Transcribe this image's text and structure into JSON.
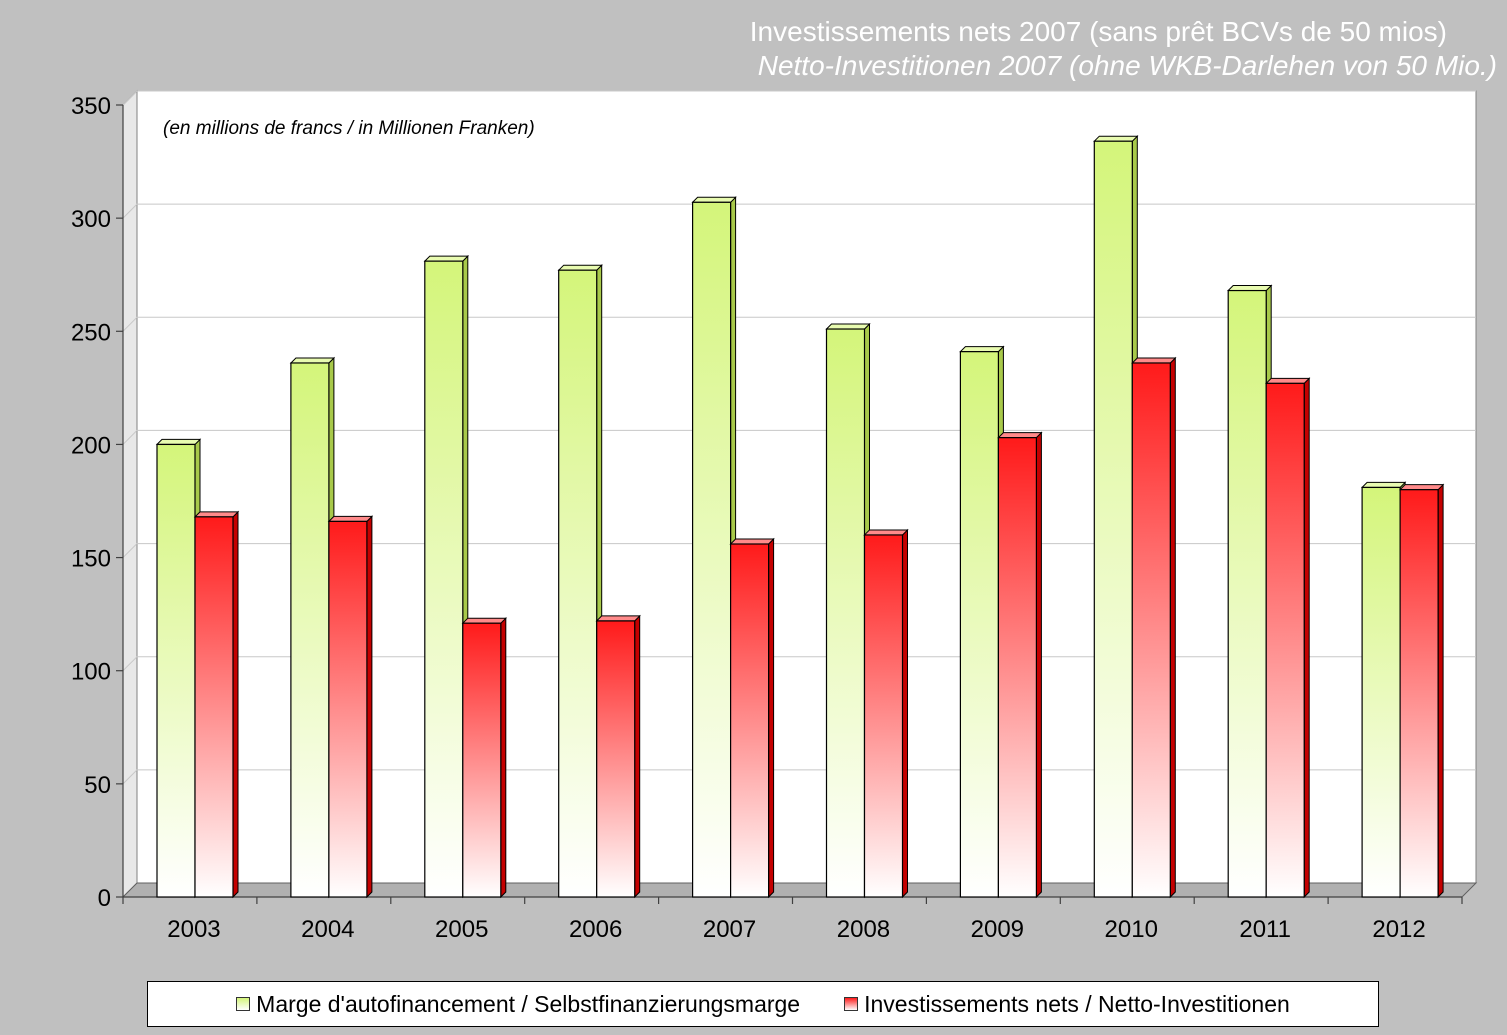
{
  "title": "Investissements nets 2007 (sans prêt BCVs de 50 mios)",
  "subtitle": "Netto-Investitionen 2007 (ohne WKB-Darlehen von 50 Mio.)",
  "colors": {
    "background": "#c0c0c0",
    "plot_area": "#ffffff",
    "series_green": "#d4f57a",
    "series_red": "#ff1a1a"
  },
  "chart_data": {
    "type": "bar",
    "title": "Investissements nets 2007 (sans prêt BCVs de 50 mios)",
    "subtitle": "Netto-Investitionen 2007 (ohne WKB-Darlehen von 50 Mio.)",
    "annotation": "(en millions de francs / in Millionen Franken)",
    "categories": [
      "2003",
      "2004",
      "2005",
      "2006",
      "2007",
      "2008",
      "2009",
      "2010",
      "2011",
      "2012"
    ],
    "series": [
      {
        "name": "Marge d'autofinancement / Selbstfinanzierungsmarge",
        "color": "#d4f57a",
        "values": [
          200,
          236,
          281,
          277,
          307,
          251,
          241,
          334,
          268,
          181
        ]
      },
      {
        "name": "Investissements nets / Netto-Investitionen",
        "color": "#ff1a1a",
        "values": [
          168,
          166,
          121,
          122,
          156,
          160,
          203,
          236,
          227,
          180
        ]
      }
    ],
    "yticks": [
      "0",
      "50",
      "100",
      "150",
      "200",
      "250",
      "300",
      "350"
    ],
    "ylim": [
      0,
      350
    ],
    "grid": true,
    "legend": "bottom"
  }
}
